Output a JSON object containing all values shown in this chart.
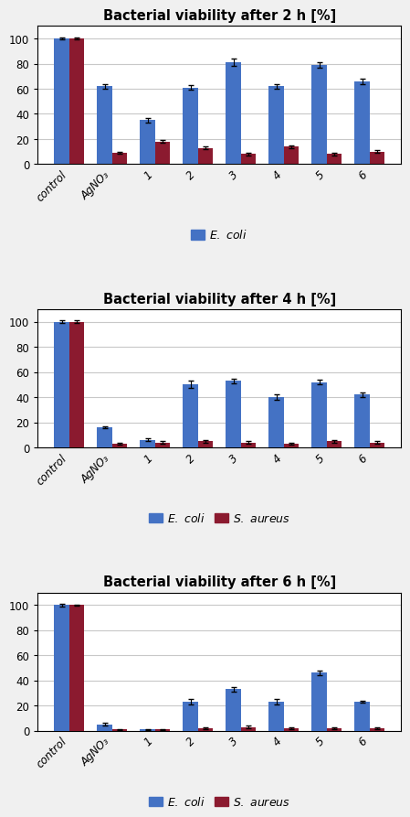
{
  "charts": [
    {
      "title": "Bacterial viability after 2 h [%]",
      "categories": [
        "control",
        "AgNO₃",
        "1",
        "2",
        "3",
        "4",
        "5",
        "6"
      ],
      "ecoli": [
        100,
        62,
        35,
        61,
        81,
        62,
        79,
        66
      ],
      "saureus": [
        100,
        9,
        18,
        13,
        8,
        14,
        8,
        10
      ],
      "ecoli_err": [
        1,
        2,
        2,
        2,
        3,
        2,
        2,
        2
      ],
      "saureus_err": [
        1,
        1,
        1,
        1,
        1,
        1,
        1,
        1
      ],
      "show_saureus_legend": false
    },
    {
      "title": "Bacterial viability after 4 h [%]",
      "categories": [
        "control",
        "AgNO₃",
        "1",
        "2",
        "3",
        "4",
        "5",
        "6"
      ],
      "ecoli": [
        100,
        16,
        6,
        50,
        53,
        40,
        52,
        42
      ],
      "saureus": [
        100,
        3,
        4,
        5,
        4,
        3,
        5,
        4
      ],
      "ecoli_err": [
        1,
        1,
        1,
        3,
        2,
        2,
        2,
        2
      ],
      "saureus_err": [
        1,
        1,
        1,
        1,
        1,
        1,
        1,
        1
      ],
      "show_saureus_legend": true
    },
    {
      "title": "Bacterial viability after 6 h [%]",
      "categories": [
        "control",
        "AgNO₃",
        "1",
        "2",
        "3",
        "4",
        "5",
        "6"
      ],
      "ecoli": [
        100,
        5,
        1,
        23,
        33,
        23,
        46,
        23
      ],
      "saureus": [
        100,
        1,
        1,
        2,
        3,
        2,
        2,
        2
      ],
      "ecoli_err": [
        1,
        1,
        0.5,
        2,
        2,
        2,
        2,
        1
      ],
      "saureus_err": [
        0.5,
        0.5,
        0.5,
        0.5,
        1,
        0.5,
        0.5,
        0.5
      ],
      "show_saureus_legend": true
    }
  ],
  "ecoli_color": "#4472C4",
  "saureus_color": "#8B1A2F",
  "bar_width": 0.35,
  "ylim": [
    0,
    110
  ],
  "yticks": [
    0,
    20,
    40,
    60,
    80,
    100
  ],
  "grid_color": "#C8C8C8",
  "background_color": "#F0F0F0",
  "plot_bg_color": "#FFFFFF",
  "title_fontsize": 10.5,
  "tick_fontsize": 8.5,
  "legend_fontsize": 9,
  "error_capsize": 2
}
